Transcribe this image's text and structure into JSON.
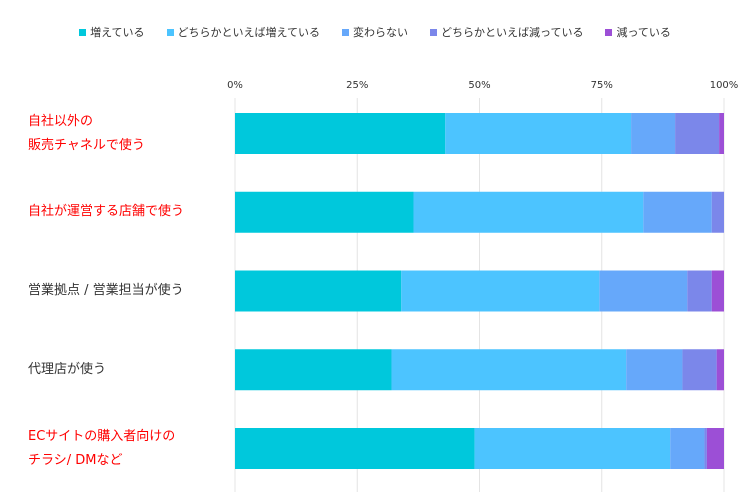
{
  "chart_data": {
    "type": "bar",
    "orientation": "horizontal",
    "stacked": true,
    "percent_scale": true,
    "categories": [
      "自社以外の\n販売チャネルで使う",
      "自社が運営する店舗で使う",
      "営業拠点 / 営業担当が使う",
      "代理店が使う",
      "ECサイトの購入者向けの\nチラシ/ DMなど"
    ],
    "category_colors": [
      "#ff0000",
      "#ff0000",
      "#333333",
      "#333333",
      "#ff0000"
    ],
    "series": [
      {
        "name": "増えている",
        "color": "#00c8dc",
        "values": [
          43.0,
          36.5,
          34.0,
          32.0,
          49.0
        ]
      },
      {
        "name": "どちらかといえば増えている",
        "color": "#4cc4ff",
        "values": [
          38.0,
          47.0,
          40.5,
          48.0,
          40.0
        ]
      },
      {
        "name": "変わらない",
        "color": "#66a8fa",
        "values": [
          9.0,
          14.0,
          18.0,
          11.5,
          7.0
        ]
      },
      {
        "name": "どちらかといえば減っている",
        "color": "#7b87ea",
        "values": [
          9.0,
          2.5,
          5.0,
          7.0,
          0.5
        ]
      },
      {
        "name": "減っている",
        "color": "#9c4fd6",
        "values": [
          1.0,
          0.0,
          2.5,
          1.5,
          3.5
        ]
      }
    ],
    "xticks": [
      "0%",
      "25%",
      "50%",
      "75%",
      "100%"
    ],
    "xlim": [
      0,
      100
    ],
    "grid": true,
    "legend_position": "top"
  }
}
